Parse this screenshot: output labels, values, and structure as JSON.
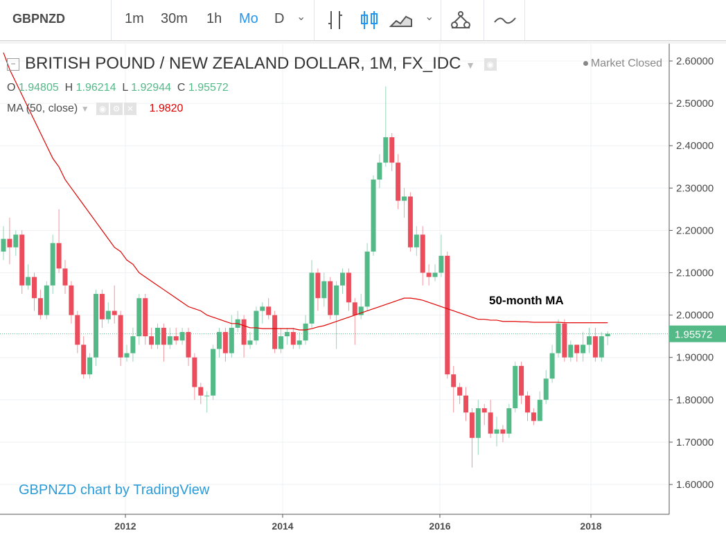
{
  "toolbar": {
    "symbol": "GBPNZD",
    "intervals": [
      "1m",
      "30m",
      "1h",
      "Mo",
      "D"
    ],
    "active_interval": "Mo"
  },
  "legend": {
    "title": "BRITISH POUND / NEW ZEALAND DOLLAR, 1M, FX_IDC",
    "o_label": "O",
    "o_value": "1.94805",
    "h_label": "H",
    "h_value": "1.96214",
    "l_label": "L",
    "l_value": "1.92944",
    "c_label": "C",
    "c_value": "1.95572",
    "ma_label": "MA (50, close)",
    "ma_value": "1.9820",
    "market_status": "Market Closed"
  },
  "watermark": "GBPNZD chart by TradingView",
  "annotation": "50-month MA",
  "colors": {
    "up": "#53b987",
    "down": "#eb4d5c",
    "ma": "#e00000",
    "accent": "#2196f3",
    "price_badge": "#53b987"
  },
  "chart_data": {
    "type": "candlestick",
    "ylim": [
      1.56,
      2.62
    ],
    "y_ticks": [
      "2.60000",
      "2.50000",
      "2.40000",
      "2.30000",
      "2.20000",
      "2.10000",
      "2.00000",
      "1.90000",
      "1.80000",
      "1.70000",
      "1.60000"
    ],
    "x_ticks": [
      "2012",
      "2014",
      "2016",
      "2018"
    ],
    "last_price": "1.95572",
    "candles": [
      [
        2.15,
        2.18,
        2.21,
        2.13
      ],
      [
        2.18,
        2.16,
        2.23,
        2.12
      ],
      [
        2.16,
        2.19,
        2.2,
        2.14
      ],
      [
        2.19,
        2.07,
        2.2,
        2.05
      ],
      [
        2.07,
        2.09,
        2.12,
        2.06
      ],
      [
        2.09,
        2.04,
        2.1,
        2.01
      ],
      [
        2.04,
        2.0,
        2.06,
        1.99
      ],
      [
        2.0,
        2.07,
        2.08,
        1.99
      ],
      [
        2.07,
        2.17,
        2.19,
        2.05
      ],
      [
        2.17,
        2.11,
        2.25,
        2.1
      ],
      [
        2.11,
        2.07,
        2.13,
        2.05
      ],
      [
        2.07,
        2.0,
        2.08,
        1.98
      ],
      [
        2.0,
        1.93,
        2.01,
        1.91
      ],
      [
        1.93,
        1.86,
        1.95,
        1.85
      ],
      [
        1.86,
        1.9,
        1.91,
        1.85
      ],
      [
        1.9,
        2.05,
        2.06,
        1.88
      ],
      [
        2.05,
        1.99,
        2.06,
        1.97
      ],
      [
        1.99,
        2.01,
        2.03,
        1.98
      ],
      [
        2.01,
        2.0,
        2.07,
        1.98
      ],
      [
        2.0,
        1.9,
        2.01,
        1.88
      ],
      [
        1.9,
        1.91,
        1.93,
        1.89
      ],
      [
        1.91,
        1.95,
        1.97,
        1.89
      ],
      [
        1.95,
        2.04,
        2.05,
        1.93
      ],
      [
        2.04,
        1.95,
        2.05,
        1.93
      ],
      [
        1.95,
        1.93,
        1.97,
        1.92
      ],
      [
        1.93,
        1.97,
        1.98,
        1.92
      ],
      [
        1.97,
        1.93,
        1.98,
        1.89
      ],
      [
        1.93,
        1.95,
        1.97,
        1.92
      ],
      [
        1.95,
        1.94,
        1.97,
        1.93
      ],
      [
        1.94,
        1.96,
        1.97,
        1.93
      ],
      [
        1.96,
        1.9,
        1.97,
        1.88
      ],
      [
        1.9,
        1.83,
        1.91,
        1.8
      ],
      [
        1.83,
        1.81,
        1.84,
        1.79
      ],
      [
        1.81,
        1.81,
        1.82,
        1.77
      ],
      [
        1.81,
        1.92,
        1.93,
        1.8
      ],
      [
        1.92,
        1.96,
        1.97,
        1.9
      ],
      [
        1.96,
        1.91,
        1.97,
        1.89
      ],
      [
        1.91,
        1.97,
        2.0,
        1.9
      ],
      [
        1.97,
        1.99,
        2.01,
        1.96
      ],
      [
        1.99,
        1.93,
        2.0,
        1.9
      ],
      [
        1.93,
        1.94,
        1.96,
        1.92
      ],
      [
        1.94,
        2.01,
        2.02,
        1.93
      ],
      [
        2.01,
        2.02,
        2.03,
        1.98
      ],
      [
        2.02,
        2.0,
        2.04,
        1.99
      ],
      [
        2.0,
        1.92,
        2.01,
        1.91
      ],
      [
        1.92,
        1.95,
        1.97,
        1.91
      ],
      [
        1.95,
        1.96,
        1.97,
        1.93
      ],
      [
        1.96,
        1.93,
        1.97,
        1.92
      ],
      [
        1.93,
        1.94,
        1.96,
        1.92
      ],
      [
        1.94,
        1.98,
        2.0,
        1.93
      ],
      [
        1.98,
        2.1,
        2.13,
        1.97
      ],
      [
        2.1,
        2.04,
        2.11,
        2.01
      ],
      [
        2.04,
        2.08,
        2.1,
        2.02
      ],
      [
        2.08,
        2.0,
        2.09,
        1.99
      ],
      [
        2.0,
        2.07,
        2.08,
        1.92
      ],
      [
        2.07,
        2.1,
        2.11,
        2.05
      ],
      [
        2.1,
        2.03,
        2.11,
        2.01
      ],
      [
        2.03,
        2.0,
        2.04,
        1.93
      ],
      [
        2.0,
        2.02,
        2.05,
        1.99
      ],
      [
        2.02,
        2.15,
        2.17,
        2.01
      ],
      [
        2.15,
        2.32,
        2.33,
        2.14
      ],
      [
        2.32,
        2.36,
        2.38,
        2.3
      ],
      [
        2.36,
        2.42,
        2.54,
        2.35
      ],
      [
        2.42,
        2.36,
        2.43,
        2.34
      ],
      [
        2.36,
        2.27,
        2.38,
        2.25
      ],
      [
        2.27,
        2.28,
        2.3,
        2.23
      ],
      [
        2.28,
        2.16,
        2.29,
        2.15
      ],
      [
        2.16,
        2.19,
        2.21,
        2.14
      ],
      [
        2.19,
        2.1,
        2.21,
        2.07
      ],
      [
        2.1,
        2.09,
        2.12,
        2.07
      ],
      [
        2.09,
        2.1,
        2.12,
        2.08
      ],
      [
        2.1,
        2.14,
        2.19,
        2.09
      ],
      [
        2.14,
        1.86,
        2.15,
        1.85
      ],
      [
        1.86,
        1.83,
        1.88,
        1.77
      ],
      [
        1.83,
        1.81,
        1.84,
        1.79
      ],
      [
        1.81,
        1.77,
        1.83,
        1.75
      ],
      [
        1.77,
        1.71,
        1.78,
        1.64
      ],
      [
        1.71,
        1.78,
        1.8,
        1.67
      ],
      [
        1.78,
        1.77,
        1.79,
        1.74
      ],
      [
        1.77,
        1.72,
        1.8,
        1.71
      ],
      [
        1.72,
        1.73,
        1.76,
        1.69
      ],
      [
        1.73,
        1.72,
        1.74,
        1.7
      ],
      [
        1.72,
        1.78,
        1.79,
        1.71
      ],
      [
        1.78,
        1.88,
        1.89,
        1.77
      ],
      [
        1.88,
        1.81,
        1.89,
        1.79
      ],
      [
        1.81,
        1.77,
        1.82,
        1.75
      ],
      [
        1.77,
        1.75,
        1.78,
        1.74
      ],
      [
        1.75,
        1.8,
        1.82,
        1.75
      ],
      [
        1.8,
        1.85,
        1.87,
        1.79
      ],
      [
        1.85,
        1.91,
        1.93,
        1.84
      ],
      [
        1.91,
        1.98,
        1.99,
        1.9
      ],
      [
        1.98,
        1.9,
        1.99,
        1.89
      ],
      [
        1.9,
        1.93,
        1.94,
        1.89
      ],
      [
        1.93,
        1.91,
        1.93,
        1.89
      ],
      [
        1.91,
        1.93,
        1.96,
        1.89
      ],
      [
        1.93,
        1.95,
        1.97,
        1.91
      ],
      [
        1.95,
        1.9,
        1.97,
        1.89
      ],
      [
        1.9,
        1.95,
        1.96,
        1.89
      ],
      [
        1.95,
        1.956,
        1.962,
        1.929
      ]
    ],
    "ma": [
      2.62,
      2.58,
      2.55,
      2.52,
      2.49,
      2.46,
      2.43,
      2.4,
      2.37,
      2.35,
      2.32,
      2.3,
      2.28,
      2.26,
      2.24,
      2.22,
      2.2,
      2.18,
      2.16,
      2.15,
      2.13,
      2.12,
      2.1,
      2.09,
      2.08,
      2.07,
      2.06,
      2.05,
      2.04,
      2.03,
      2.02,
      2.015,
      2.01,
      2.0,
      1.995,
      1.99,
      1.985,
      1.98,
      1.98,
      1.975,
      1.97,
      1.97,
      1.968,
      1.968,
      1.968,
      1.968,
      1.968,
      1.968,
      1.965,
      1.965,
      1.968,
      1.972,
      1.975,
      1.98,
      1.985,
      1.99,
      1.995,
      2.0,
      2.005,
      2.01,
      2.015,
      2.02,
      2.025,
      2.03,
      2.035,
      2.04,
      2.04,
      2.038,
      2.035,
      2.03,
      2.025,
      2.02,
      2.015,
      2.01,
      2.005,
      2.0,
      1.995,
      1.99,
      1.99,
      1.988,
      1.988,
      1.985,
      1.985,
      1.985,
      1.984,
      1.984,
      1.983,
      1.983,
      1.983,
      1.983,
      1.983,
      1.982,
      1.982,
      1.982,
      1.982,
      1.982,
      1.982,
      1.982,
      1.982
    ]
  }
}
